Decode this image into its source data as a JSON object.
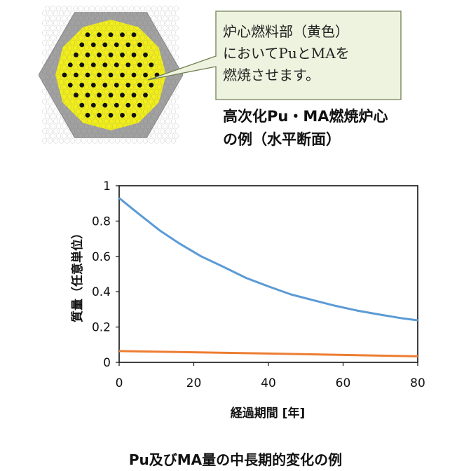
{
  "callout": {
    "lines": [
      "炉心燃料部（黄色）",
      "においてPuとMAを",
      "燃焼させます。"
    ]
  },
  "core_caption": {
    "lines": [
      "高次化Pu・MA燃焼炉心",
      "の例（水平断面）"
    ]
  },
  "colors": {
    "fuel": "#f2ef1c",
    "reflector": "#a2a2a2",
    "pin": "#111111",
    "callout_fill": "#eef3df",
    "callout_border": "#6f7f55",
    "series_pu": "#5b9bd5",
    "series_ma": "#ed7d31"
  },
  "chart_data": {
    "type": "line",
    "xlabel": "経過期間 [年]",
    "ylabel": "質量（任意単位）",
    "xlim": [
      0,
      80
    ],
    "ylim": [
      0,
      1
    ],
    "xticks": [
      "0",
      "20",
      "40",
      "60",
      "80"
    ],
    "yticks": [
      "0",
      "0.2",
      "0.4",
      "0.6",
      "0.8",
      "1"
    ],
    "grid": false,
    "legend": "none",
    "series": [
      {
        "x": [
          0,
          5,
          11,
          16,
          22,
          28,
          34,
          40,
          46,
          52,
          58,
          64,
          70,
          76,
          80
        ],
        "y": [
          0.93,
          0.845,
          0.745,
          0.675,
          0.6,
          0.54,
          0.478,
          0.43,
          0.385,
          0.352,
          0.32,
          0.292,
          0.27,
          0.249,
          0.238
        ]
      },
      {
        "x": [
          0,
          20,
          40,
          60,
          80
        ],
        "y": [
          0.064,
          0.057,
          0.05,
          0.042,
          0.034
        ]
      }
    ]
  },
  "bottom_caption": "Pu及びMA量の中長期的変化の例"
}
